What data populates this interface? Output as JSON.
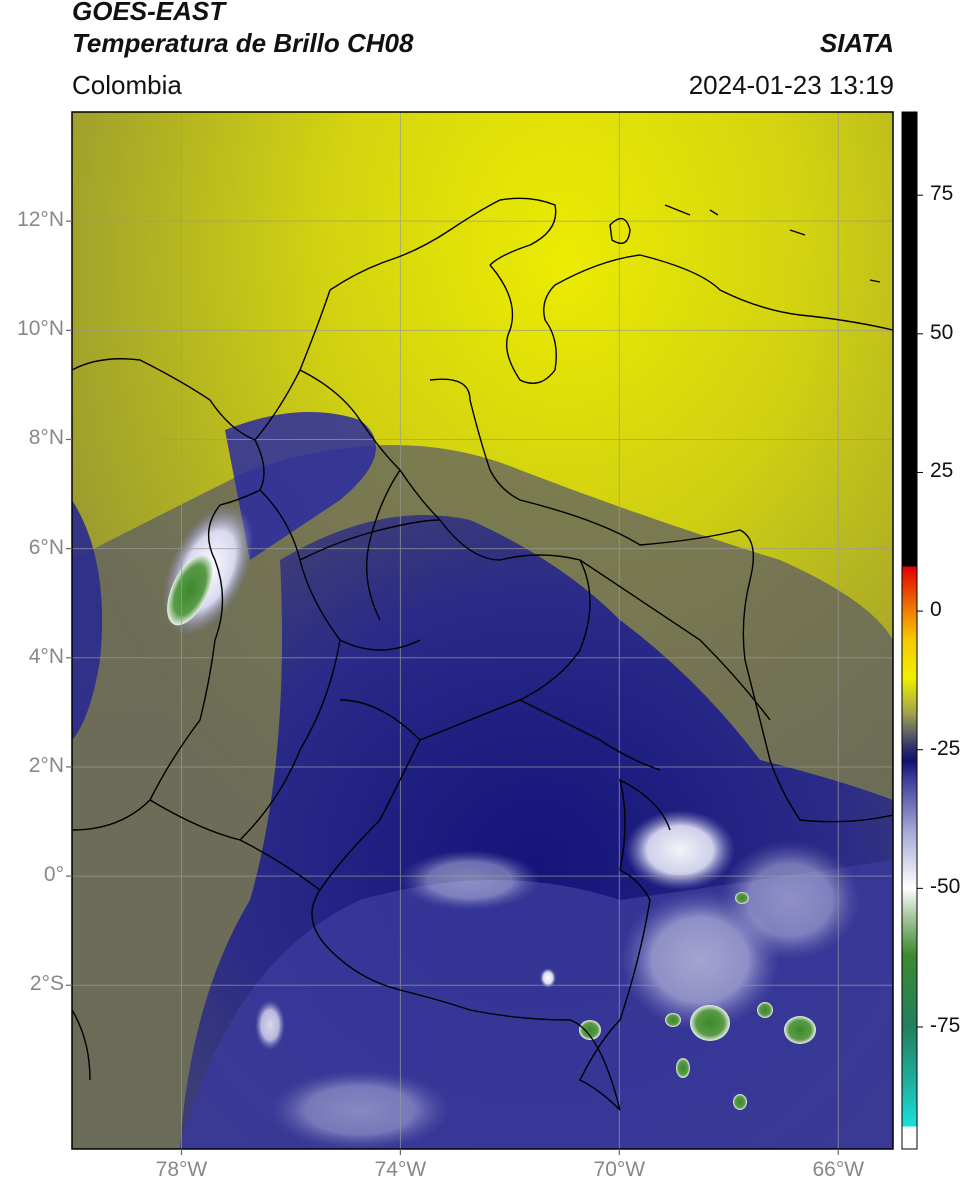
{
  "header": {
    "satellite": "GOES-EAST",
    "product": "Temperatura de Brillo CH08",
    "source": "SIATA",
    "region": "Colombia",
    "datetime": "2024-01-23 13:19"
  },
  "map": {
    "lon_range": [
      -80,
      -65
    ],
    "lat_range": [
      -5,
      14
    ],
    "grid": true,
    "lat_ticks": [
      {
        "value": 12,
        "label": "12°N"
      },
      {
        "value": 10,
        "label": "10°N"
      },
      {
        "value": 8,
        "label": "8°N"
      },
      {
        "value": 6,
        "label": "6°N"
      },
      {
        "value": 4,
        "label": "4°N"
      },
      {
        "value": 2,
        "label": "2°N"
      },
      {
        "value": 0,
        "label": "0°"
      },
      {
        "value": -2,
        "label": "2°S"
      }
    ],
    "lon_ticks": [
      {
        "value": -78,
        "label": "78°W"
      },
      {
        "value": -74,
        "label": "74°W"
      },
      {
        "value": -70,
        "label": "70°W"
      },
      {
        "value": -66,
        "label": "66°W"
      }
    ]
  },
  "colorbar": {
    "range": [
      -97,
      90
    ],
    "ticks": [
      {
        "value": 75,
        "label": "75"
      },
      {
        "value": 50,
        "label": "50"
      },
      {
        "value": 25,
        "label": "25"
      },
      {
        "value": 0,
        "label": "0"
      },
      {
        "value": -25,
        "label": "-25"
      },
      {
        "value": -50,
        "label": "-50"
      },
      {
        "value": -75,
        "label": "-75"
      }
    ],
    "stops": [
      {
        "value": -97,
        "color": "#ffffff"
      },
      {
        "value": -93,
        "color": "#ffffff"
      },
      {
        "value": -92.9,
        "color": "#18e0d8"
      },
      {
        "value": -85,
        "color": "#20b0a0"
      },
      {
        "value": -75,
        "color": "#208060"
      },
      {
        "value": -62,
        "color": "#3c8a30"
      },
      {
        "value": -55,
        "color": "#a8c8a0"
      },
      {
        "value": -50,
        "color": "#ffffff"
      },
      {
        "value": -40,
        "color": "#a8acd8"
      },
      {
        "value": -30,
        "color": "#3a3a98"
      },
      {
        "value": -27,
        "color": "#101070"
      },
      {
        "value": -25,
        "color": "#2a2a6a"
      },
      {
        "value": -22,
        "color": "#606068"
      },
      {
        "value": -18,
        "color": "#a8a848"
      },
      {
        "value": -12,
        "color": "#f0f000"
      },
      {
        "value": -5,
        "color": "#f6c800"
      },
      {
        "value": 0,
        "color": "#f08000"
      },
      {
        "value": 8,
        "color": "#e00000"
      },
      {
        "value": 8.1,
        "color": "#000000"
      },
      {
        "value": 90,
        "color": "#000000"
      }
    ]
  }
}
